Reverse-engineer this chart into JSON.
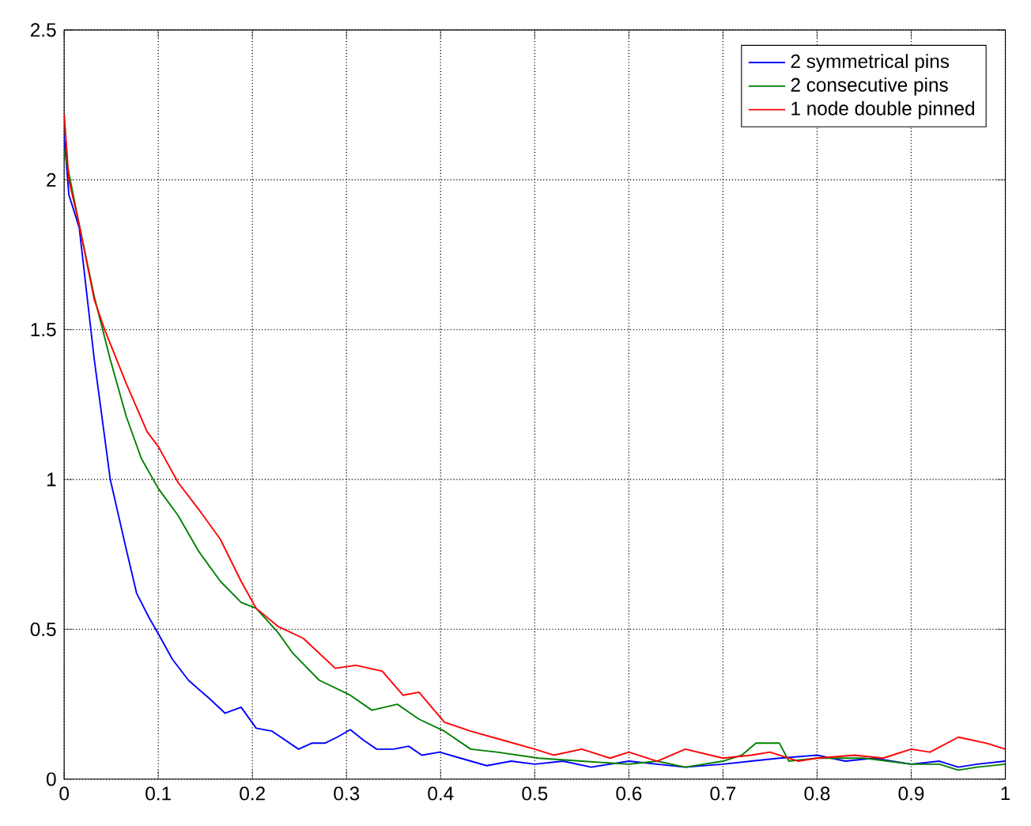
{
  "chart_data": {
    "type": "line",
    "xlim": [
      0,
      1
    ],
    "ylim": [
      0,
      2.5
    ],
    "xticks": [
      0,
      0.1,
      0.2,
      0.3,
      0.4,
      0.5,
      0.6,
      0.7,
      0.8,
      0.9,
      1
    ],
    "yticks": [
      0,
      0.5,
      1,
      1.5,
      2,
      2.5
    ],
    "grid": true,
    "legend": "top right",
    "line_style": "solid",
    "marker": "none",
    "series": [
      {
        "name": "2 symmetrical pins",
        "color": "#0000ff",
        "x": [
          0,
          0.005,
          0.016,
          0.032,
          0.049,
          0.065,
          0.077,
          0.09,
          0.1,
          0.115,
          0.132,
          0.154,
          0.171,
          0.188,
          0.204,
          0.221,
          0.235,
          0.249,
          0.263,
          0.277,
          0.29,
          0.304,
          0.318,
          0.332,
          0.35,
          0.366,
          0.38,
          0.399,
          0.421,
          0.449,
          0.475,
          0.5,
          0.53,
          0.56,
          0.6,
          0.63,
          0.66,
          0.7,
          0.73,
          0.76,
          0.8,
          0.83,
          0.86,
          0.9,
          0.93,
          0.95,
          0.97,
          1
        ],
        "values": [
          2.15,
          1.95,
          1.84,
          1.4,
          1.0,
          0.78,
          0.62,
          0.54,
          0.485,
          0.4,
          0.33,
          0.27,
          0.22,
          0.24,
          0.17,
          0.16,
          0.13,
          0.1,
          0.12,
          0.12,
          0.14,
          0.165,
          0.13,
          0.1,
          0.1,
          0.11,
          0.08,
          0.09,
          0.07,
          0.045,
          0.06,
          0.05,
          0.06,
          0.04,
          0.06,
          0.05,
          0.04,
          0.05,
          0.06,
          0.07,
          0.08,
          0.06,
          0.07,
          0.05,
          0.06,
          0.04,
          0.05,
          0.06
        ]
      },
      {
        "name": "2 consecutive pins",
        "color": "#008000",
        "x": [
          0,
          0.016,
          0.032,
          0.049,
          0.066,
          0.082,
          0.1,
          0.121,
          0.143,
          0.166,
          0.188,
          0.204,
          0.227,
          0.243,
          0.271,
          0.304,
          0.327,
          0.354,
          0.377,
          0.404,
          0.432,
          0.46,
          0.504,
          0.55,
          0.6,
          0.63,
          0.66,
          0.7,
          0.72,
          0.735,
          0.76,
          0.77,
          0.8,
          0.85,
          0.9,
          0.93,
          0.95,
          0.97,
          1
        ],
        "values": [
          2.1,
          1.85,
          1.61,
          1.4,
          1.21,
          1.07,
          0.97,
          0.88,
          0.76,
          0.66,
          0.59,
          0.57,
          0.49,
          0.42,
          0.33,
          0.28,
          0.23,
          0.25,
          0.2,
          0.16,
          0.1,
          0.09,
          0.07,
          0.06,
          0.05,
          0.06,
          0.04,
          0.06,
          0.08,
          0.12,
          0.12,
          0.06,
          0.07,
          0.07,
          0.05,
          0.05,
          0.03,
          0.04,
          0.05
        ]
      },
      {
        "name": "1 node double pinned",
        "color": "#ff0000",
        "x": [
          0,
          0.005,
          0.016,
          0.032,
          0.043,
          0.066,
          0.088,
          0.1,
          0.121,
          0.143,
          0.166,
          0.188,
          0.204,
          0.227,
          0.254,
          0.288,
          0.31,
          0.338,
          0.36,
          0.377,
          0.404,
          0.432,
          0.466,
          0.5,
          0.52,
          0.55,
          0.58,
          0.6,
          0.63,
          0.66,
          0.7,
          0.73,
          0.75,
          0.78,
          0.8,
          0.84,
          0.87,
          0.9,
          0.92,
          0.95,
          0.98,
          1
        ],
        "values": [
          2.22,
          2.0,
          1.85,
          1.6,
          1.5,
          1.32,
          1.16,
          1.11,
          0.99,
          0.9,
          0.8,
          0.66,
          0.57,
          0.51,
          0.47,
          0.37,
          0.38,
          0.36,
          0.28,
          0.29,
          0.19,
          0.16,
          0.13,
          0.1,
          0.08,
          0.1,
          0.07,
          0.09,
          0.06,
          0.1,
          0.07,
          0.08,
          0.09,
          0.06,
          0.07,
          0.08,
          0.07,
          0.1,
          0.09,
          0.14,
          0.12,
          0.1
        ]
      }
    ]
  }
}
